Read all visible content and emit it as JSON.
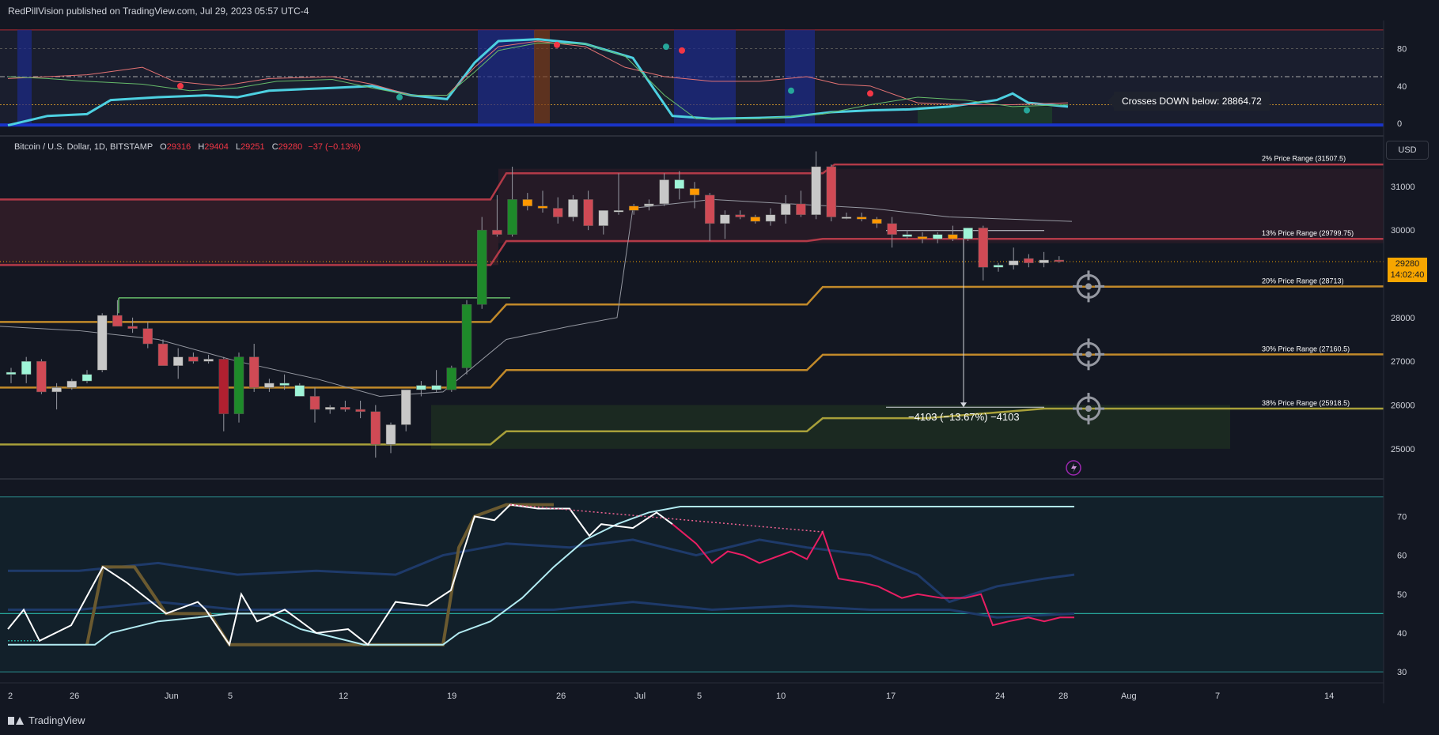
{
  "header": {
    "publish_line": "RedPillVision published on TradingView.com, Jul 29, 2023 05:57 UTC-4"
  },
  "footer": {
    "brand": "TradingView"
  },
  "legend": {
    "symbol": "Bitcoin / U.S. Dollar, 1D, BITSTAMP",
    "o": "29316",
    "h": "29404",
    "l": "29251",
    "c": "29280",
    "chg": "−37 (−0.13%)"
  },
  "currency_label": "USD",
  "last_price": {
    "value": "29280",
    "countdown": "14:02:40"
  },
  "alert_tooltip": "Crosses DOWN below: 28864.72",
  "measure_label": "−4103 (−13.67%) −4103",
  "colors": {
    "bull": "#26a69a",
    "bear": "#f23645",
    "orange": "#ff9800",
    "gold": "#c28a2a"
  },
  "chart_data": [
    {
      "type": "line",
      "panel": "top-oscillator",
      "y_ticks": [
        0,
        40,
        80
      ],
      "ylim": [
        -10,
        110
      ]
    },
    {
      "type": "candlestick",
      "panel": "price",
      "x_ticks": [
        "2",
        "26",
        "Jun",
        "5",
        "12",
        "19",
        "26",
        "Jul",
        "5",
        "10",
        "17",
        "24",
        "28",
        "Aug",
        "7",
        "14"
      ],
      "y_ticks": [
        25000,
        26000,
        27000,
        28000,
        29000,
        30000,
        31000
      ],
      "ylim": [
        24600,
        31900
      ],
      "price_ranges": [
        {
          "label": "2% Price Range",
          "value": "(31507.5)",
          "y": 31507.5
        },
        {
          "label": "13% Price Range",
          "value": "(29799.75)",
          "y": 29799.75
        },
        {
          "label": "20% Price Range",
          "value": "(28713)",
          "y": 28713
        },
        {
          "label": "30% Price Range",
          "value": "(27160.5)",
          "y": 27160.5
        },
        {
          "label": "38% Price Range",
          "value": "(25918.5)",
          "y": 25918.5
        }
      ],
      "candles": [
        {
          "o": 26700,
          "h": 26850,
          "l": 26500,
          "c": 26750
        },
        {
          "o": 26700,
          "h": 27100,
          "l": 26500,
          "c": 27000
        },
        {
          "o": 27000,
          "h": 27050,
          "l": 26250,
          "c": 26300
        },
        {
          "o": 26300,
          "h": 26500,
          "l": 25900,
          "c": 26400
        },
        {
          "o": 26400,
          "h": 26600,
          "l": 26350,
          "c": 26550
        },
        {
          "o": 26550,
          "h": 26800,
          "l": 26500,
          "c": 26700
        },
        {
          "o": 26800,
          "h": 28100,
          "l": 26750,
          "c": 28050
        },
        {
          "o": 28050,
          "h": 28400,
          "l": 27800,
          "c": 27800
        },
        {
          "o": 27800,
          "h": 28000,
          "l": 27650,
          "c": 27750
        },
        {
          "o": 27750,
          "h": 27900,
          "l": 27300,
          "c": 27400
        },
        {
          "o": 27400,
          "h": 27500,
          "l": 26900,
          "c": 26900
        },
        {
          "o": 26900,
          "h": 27300,
          "l": 26600,
          "c": 27100
        },
        {
          "o": 27100,
          "h": 27200,
          "l": 26950,
          "c": 27000
        },
        {
          "o": 27000,
          "h": 27150,
          "l": 26950,
          "c": 27050
        },
        {
          "o": 27050,
          "h": 27100,
          "l": 25400,
          "c": 25800
        },
        {
          "o": 25800,
          "h": 27200,
          "l": 25600,
          "c": 27100
        },
        {
          "o": 27100,
          "h": 27400,
          "l": 26300,
          "c": 26400
        },
        {
          "o": 26400,
          "h": 26600,
          "l": 26300,
          "c": 26500
        },
        {
          "o": 26500,
          "h": 26700,
          "l": 26350,
          "c": 26450
        },
        {
          "o": 26450,
          "h": 26500,
          "l": 26200,
          "c": 26200
        },
        {
          "o": 26200,
          "h": 26400,
          "l": 25600,
          "c": 25900
        },
        {
          "o": 25900,
          "h": 26000,
          "l": 25800,
          "c": 25950
        },
        {
          "o": 25950,
          "h": 26100,
          "l": 25850,
          "c": 25900
        },
        {
          "o": 25900,
          "h": 26100,
          "l": 25700,
          "c": 25850
        },
        {
          "o": 25850,
          "h": 26000,
          "l": 24800,
          "c": 25100
        },
        {
          "o": 25100,
          "h": 25600,
          "l": 24900,
          "c": 25550
        },
        {
          "o": 25550,
          "h": 26300,
          "l": 25400,
          "c": 26350
        },
        {
          "o": 26350,
          "h": 26550,
          "l": 26200,
          "c": 26450
        },
        {
          "o": 26450,
          "h": 26800,
          "l": 26300,
          "c": 26350
        },
        {
          "o": 26350,
          "h": 26900,
          "l": 26300,
          "c": 26850
        },
        {
          "o": 26850,
          "h": 28400,
          "l": 26700,
          "c": 28300
        },
        {
          "o": 28300,
          "h": 30300,
          "l": 28200,
          "c": 30000
        },
        {
          "o": 30000,
          "h": 30800,
          "l": 29850,
          "c": 29900
        },
        {
          "o": 29900,
          "h": 31450,
          "l": 29850,
          "c": 30700
        },
        {
          "o": 30700,
          "h": 30850,
          "l": 30450,
          "c": 30550
        },
        {
          "o": 30550,
          "h": 30900,
          "l": 30400,
          "c": 30500
        },
        {
          "o": 30500,
          "h": 30750,
          "l": 30150,
          "c": 30300
        },
        {
          "o": 30300,
          "h": 30800,
          "l": 30200,
          "c": 30700
        },
        {
          "o": 30700,
          "h": 30900,
          "l": 30000,
          "c": 30100
        },
        {
          "o": 30100,
          "h": 30450,
          "l": 29900,
          "c": 30450
        },
        {
          "o": 30450,
          "h": 31300,
          "l": 30350,
          "c": 30450
        },
        {
          "o": 30450,
          "h": 30600,
          "l": 30350,
          "c": 30550
        },
        {
          "o": 30550,
          "h": 30700,
          "l": 30450,
          "c": 30600
        },
        {
          "o": 30600,
          "h": 31300,
          "l": 30550,
          "c": 31150
        },
        {
          "o": 31150,
          "h": 31350,
          "l": 30700,
          "c": 30950
        },
        {
          "o": 30950,
          "h": 31100,
          "l": 30500,
          "c": 30800
        },
        {
          "o": 30800,
          "h": 30850,
          "l": 29750,
          "c": 30150
        },
        {
          "o": 30150,
          "h": 30450,
          "l": 29800,
          "c": 30350
        },
        {
          "o": 30350,
          "h": 30450,
          "l": 30250,
          "c": 30300
        },
        {
          "o": 30300,
          "h": 30350,
          "l": 30150,
          "c": 30200
        },
        {
          "o": 30200,
          "h": 30500,
          "l": 30100,
          "c": 30350
        },
        {
          "o": 30350,
          "h": 30800,
          "l": 30150,
          "c": 30600
        },
        {
          "o": 30600,
          "h": 30900,
          "l": 30300,
          "c": 30350
        },
        {
          "o": 30350,
          "h": 31800,
          "l": 30250,
          "c": 31450
        },
        {
          "o": 31450,
          "h": 31500,
          "l": 30200,
          "c": 30300
        },
        {
          "o": 30300,
          "h": 30400,
          "l": 30250,
          "c": 30300
        },
        {
          "o": 30300,
          "h": 30400,
          "l": 30200,
          "c": 30250
        },
        {
          "o": 30250,
          "h": 30300,
          "l": 30050,
          "c": 30150
        },
        {
          "o": 30150,
          "h": 30300,
          "l": 29600,
          "c": 29900
        },
        {
          "o": 29900,
          "h": 30000,
          "l": 29800,
          "c": 29850
        },
        {
          "o": 29850,
          "h": 29950,
          "l": 29700,
          "c": 29800
        },
        {
          "o": 29800,
          "h": 29950,
          "l": 29700,
          "c": 29900
        },
        {
          "o": 29900,
          "h": 30100,
          "l": 29750,
          "c": 29800
        },
        {
          "o": 29800,
          "h": 30050,
          "l": 29750,
          "c": 30050
        },
        {
          "o": 30050,
          "h": 30100,
          "l": 28850,
          "c": 29150
        },
        {
          "o": 29150,
          "h": 29250,
          "l": 29050,
          "c": 29200
        },
        {
          "o": 29200,
          "h": 29600,
          "l": 29100,
          "c": 29300
        },
        {
          "o": 29350,
          "h": 29450,
          "l": 29150,
          "c": 29250
        },
        {
          "o": 29250,
          "h": 29500,
          "l": 29150,
          "c": 29316
        },
        {
          "o": 29316,
          "h": 29404,
          "l": 29251,
          "c": 29280
        }
      ]
    },
    {
      "type": "line",
      "panel": "bottom-rsi",
      "y_ticks": [
        30,
        40,
        50,
        60,
        70
      ],
      "ylim": [
        28,
        78
      ]
    }
  ]
}
